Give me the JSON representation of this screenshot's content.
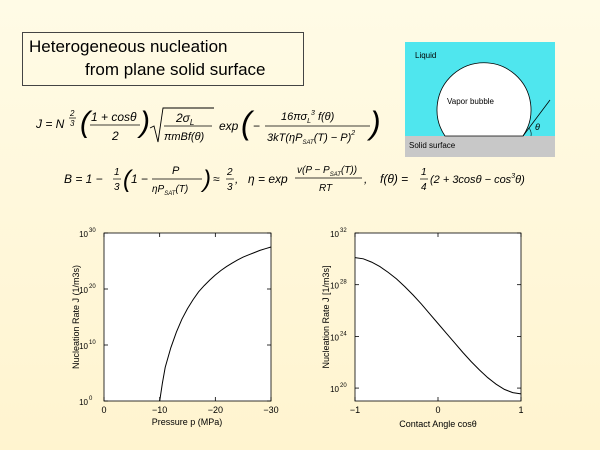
{
  "title": {
    "line1": "Heterogeneous nucleation",
    "line2": "from plane solid surface"
  },
  "equations": {
    "J": "J = N^(2/3) ((1+cosθ)/2) sqrt(2σ_L / (πmBf(θ))) exp(−16πσ_L^3 f(θ) / (3kT(ηP_SAT(T) − P)^2))",
    "B": "B = 1 − (1/3)(1 − P/(ηP_SAT(T))) ≈ 2/3,",
    "eta": "η = exp(v(P − P_SAT(T))/(RT)),",
    "f": "f(θ) = (1/4)(2 + 3cosθ − cos^3θ)"
  },
  "diagram": {
    "liquid_label": "Liquid",
    "bubble_label": "Vapor bubble",
    "surface_label": "Solid surface",
    "angle_label": "θ",
    "colors": {
      "liquid": "#4fe6ee",
      "surface": "#c8c8c8",
      "bubble": "#ffffff"
    }
  },
  "chart_data": [
    {
      "type": "line",
      "xlabel": "Pressure p (MPa)",
      "ylabel": "Nucleation Rate J (1/m3s)",
      "x_ticks": [
        "0",
        "−10",
        "−20",
        "−30"
      ],
      "y_ticks": [
        {
          "base": "10",
          "exp": "0"
        },
        {
          "base": "10",
          "exp": "10"
        },
        {
          "base": "10",
          "exp": "20"
        },
        {
          "base": "10",
          "exp": "30"
        }
      ],
      "xlim": [
        0,
        -30
      ],
      "ylim_log10": [
        0,
        30
      ],
      "x": [
        -10,
        -10.5,
        -11,
        -12,
        -13,
        -14,
        -15,
        -16,
        -17,
        -18,
        -19,
        -20,
        -21,
        -22,
        -23,
        -24,
        -25,
        -26,
        -27,
        -28,
        -29,
        -30
      ],
      "y_log10": [
        0,
        3.2,
        6,
        9.5,
        12.3,
        14.6,
        16.5,
        18.1,
        19.5,
        20.6,
        21.6,
        22.5,
        23.3,
        24,
        24.6,
        25.2,
        25.7,
        26.1,
        26.5,
        26.9,
        27.2,
        27.5
      ]
    },
    {
      "type": "line",
      "xlabel": "Contact Angle cosθ",
      "ylabel": "Nucleation Rate J [1/m3s]",
      "x_ticks": [
        "−1",
        "0",
        "1"
      ],
      "y_ticks": [
        {
          "base": "10",
          "exp": "20"
        },
        {
          "base": "10",
          "exp": "24"
        },
        {
          "base": "10",
          "exp": "28"
        },
        {
          "base": "10",
          "exp": "32"
        }
      ],
      "xlim": [
        -1,
        1
      ],
      "ylim_log10": [
        19,
        32
      ],
      "x": [
        -1,
        -0.9,
        -0.8,
        -0.7,
        -0.6,
        -0.5,
        -0.4,
        -0.3,
        -0.2,
        -0.1,
        0,
        0.1,
        0.2,
        0.3,
        0.4,
        0.5,
        0.6,
        0.7,
        0.8,
        0.9,
        1
      ],
      "y_log10": [
        30.1,
        30,
        29.75,
        29.4,
        28.95,
        28.45,
        27.85,
        27.2,
        26.5,
        25.75,
        25,
        24.25,
        23.5,
        22.75,
        22.05,
        21.4,
        20.8,
        20.3,
        19.9,
        19.65,
        19.55
      ]
    }
  ]
}
